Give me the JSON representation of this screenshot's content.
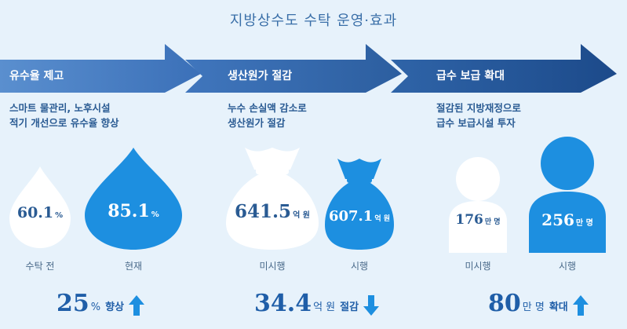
{
  "title": "지방상수도 수탁 운영·효과",
  "sections": [
    {
      "banner": "유수율 제고",
      "description": [
        "스마트 물관리, 노후시설",
        "적기 개선으로 유수율 향상"
      ],
      "items": [
        {
          "value": "60.1",
          "unit": "%",
          "caption": "수탁 전"
        },
        {
          "value": "85.1",
          "unit": "%",
          "caption": "현재"
        }
      ],
      "summary": {
        "number": "25",
        "unit": "%",
        "word": "향상",
        "direction": "up"
      }
    },
    {
      "banner": "생산원가 절감",
      "description": [
        "누수 손실액 감소로",
        "생산원가 절감"
      ],
      "items": [
        {
          "value": "641.5",
          "unit": "억 원",
          "caption": "미시행"
        },
        {
          "value": "607.1",
          "unit": "억 원",
          "caption": "시행"
        }
      ],
      "summary": {
        "number": "34.4",
        "unit": "억 원",
        "word": "절감",
        "direction": "down"
      }
    },
    {
      "banner": "급수 보급 확대",
      "description": [
        "절감된 지방재정으로",
        "급수 보급시설 투자"
      ],
      "items": [
        {
          "value": "176",
          "unit": "만 명",
          "caption": "미시행"
        },
        {
          "value": "256",
          "unit": "만 명",
          "caption": "시행"
        }
      ],
      "summary": {
        "number": "80",
        "unit": "만 명",
        "word": "확대",
        "direction": "up"
      }
    }
  ],
  "colors": {
    "background": "#e7f2fb",
    "primary_blue": "#1d8fe0",
    "dark_blue": "#1f5ea8",
    "white_shape": "#ffffff"
  },
  "icons": [
    "drop-icon",
    "money-bag-icon",
    "person-icon",
    "arrow-up-icon",
    "arrow-down-icon"
  ]
}
